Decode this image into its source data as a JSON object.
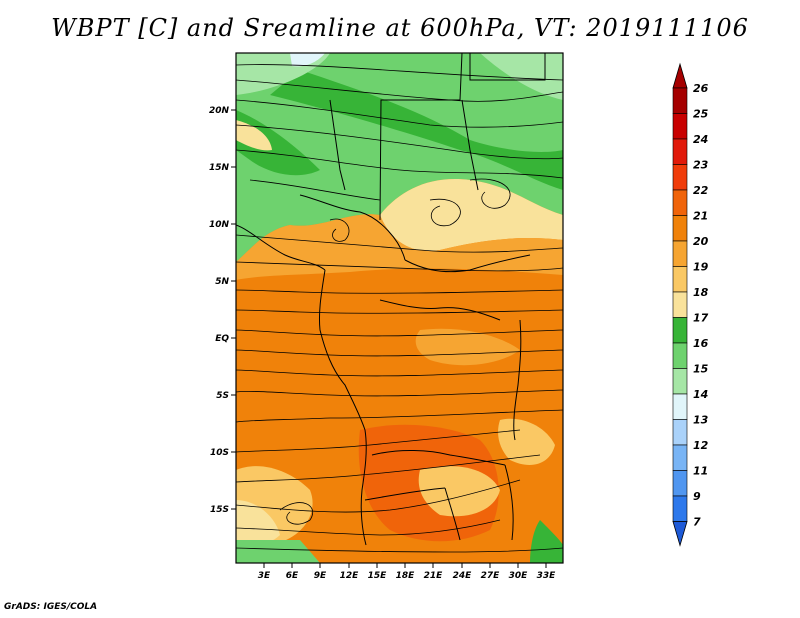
{
  "title": "WBPT [C] and Sreamline at 600hPa, VT: 2019111106",
  "credit": "GrADS: IGES/COLA",
  "map": {
    "lat_ticks": [
      "20N",
      "15N",
      "10N",
      "5N",
      "EQ",
      "5S",
      "10S",
      "15S"
    ],
    "lon_ticks": [
      "3E",
      "6E",
      "9E",
      "12E",
      "15E",
      "18E",
      "21E",
      "24E",
      "27E",
      "30E",
      "33E"
    ]
  },
  "colorbar": {
    "labels": [
      "26",
      "25",
      "24",
      "23",
      "22",
      "21",
      "20",
      "19",
      "18",
      "17",
      "16",
      "15",
      "14",
      "13",
      "12",
      "11",
      "9",
      "7"
    ],
    "colors": [
      "#a50000",
      "#c80000",
      "#e11a0a",
      "#f03c0a",
      "#f0640a",
      "#f0820a",
      "#f6a532",
      "#fac864",
      "#f9e29b",
      "#37b437",
      "#6ed26e",
      "#a6e6a6",
      "#e1f5fa",
      "#aad2fa",
      "#78b4f5",
      "#5096f0",
      "#2d78eb",
      "#1e5ad7"
    ]
  },
  "field_colors": {
    "green_dark": "#37b437",
    "green": "#6ed26e",
    "green_light": "#a6e6a6",
    "yellow": "#f9e29b",
    "gold": "#fac864",
    "orange_light": "#f6a532",
    "orange": "#f0820a",
    "blue_light": "#e1f5fa"
  }
}
